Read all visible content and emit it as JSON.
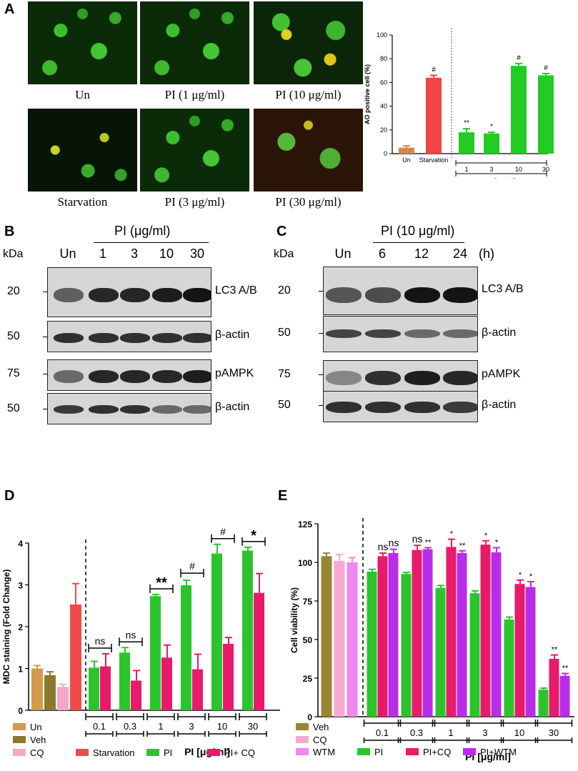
{
  "panel_labels": {
    "a": "A",
    "b": "B",
    "c": "C",
    "d": "D",
    "e": "E"
  },
  "micrographs": [
    {
      "caption": "Un",
      "tone": "green"
    },
    {
      "caption": "PI (1 μg/ml)",
      "tone": "green"
    },
    {
      "caption": "PI (10 μg/ml)",
      "tone": "yellow"
    },
    {
      "caption": "Starvation",
      "tone": "dark"
    },
    {
      "caption": "PI (3 μg/ml)",
      "tone": "green"
    },
    {
      "caption": "PI (30 μg/ml)",
      "tone": "red"
    }
  ],
  "western_b": {
    "header": "PI (μg/ml)",
    "kda": "kDa",
    "lanes": [
      "Un",
      "1",
      "3",
      "10",
      "30"
    ],
    "blots": [
      {
        "marker": "20",
        "label": "LC3 A/B",
        "intensity": [
          0.55,
          0.85,
          0.85,
          0.9,
          0.95
        ]
      },
      {
        "marker": "50",
        "label": "β-actin",
        "intensity": [
          0.8,
          0.8,
          0.8,
          0.8,
          0.8
        ]
      },
      {
        "marker": "75",
        "label": "pAMPK",
        "intensity": [
          0.5,
          0.85,
          0.85,
          0.85,
          0.9
        ]
      },
      {
        "marker": "50",
        "label": "β-actin",
        "intensity": [
          0.75,
          0.8,
          0.8,
          0.5,
          0.5
        ]
      }
    ]
  },
  "western_c": {
    "header": "PI (10 μg/ml)",
    "kda": "kDa",
    "unit": "(h)",
    "lanes": [
      "Un",
      "6",
      "12",
      "24"
    ],
    "blots": [
      {
        "marker": "20",
        "label": "LC3 A/B",
        "intensity": [
          0.6,
          0.65,
          0.95,
          0.95
        ]
      },
      {
        "marker": "50",
        "label": "β-actin",
        "intensity": [
          0.7,
          0.7,
          0.5,
          0.5
        ]
      },
      {
        "marker": "75",
        "label": "pAMPK",
        "intensity": [
          0.35,
          0.8,
          0.9,
          0.85
        ]
      },
      {
        "marker": "50",
        "label": "β-actin",
        "intensity": [
          0.8,
          0.8,
          0.8,
          0.75
        ]
      }
    ]
  },
  "chart_data": [
    {
      "id": "A",
      "type": "bar",
      "ylabel": "AO positive cell (%)",
      "ylim": [
        0,
        100
      ],
      "yticks": [
        0,
        20,
        40,
        60,
        80,
        100
      ],
      "categories": [
        "Un",
        "Starvation",
        "1",
        "3",
        "10",
        "30"
      ],
      "values": [
        5,
        64,
        18,
        17,
        74,
        66
      ],
      "errors": [
        1.5,
        2,
        3,
        1,
        2,
        1.5
      ],
      "sig": [
        "",
        "#",
        "**",
        "*",
        "#",
        "#"
      ],
      "colors": [
        "#d28a46",
        "#f24444",
        "#22cc22",
        "#22cc22",
        "#22cc22",
        "#22cc22"
      ],
      "group_label": "PI [μg/ml]"
    },
    {
      "id": "D",
      "type": "bar",
      "ylabel": "MDC staining (Fold Change)",
      "xlabel": "PI [μg/ml]",
      "ylim": [
        0,
        4
      ],
      "yticks": [
        0,
        1,
        2,
        3,
        4
      ],
      "controls": [
        {
          "name": "Un",
          "value": 1.0,
          "error": 0.07,
          "color": "#d29b4d"
        },
        {
          "name": "Veh",
          "value": 0.84,
          "error": 0.08,
          "color": "#8b7a2d"
        },
        {
          "name": "CQ",
          "value": 0.56,
          "error": 0.06,
          "color": "#f5a8c6"
        },
        {
          "name": "Starvation",
          "value": 2.53,
          "error": 0.5,
          "color": "#f24a4a"
        }
      ],
      "categories": [
        "0.1",
        "0.3",
        "1",
        "3",
        "10",
        "30"
      ],
      "series": [
        {
          "name": "PI",
          "color": "#2cc42c",
          "values": [
            1.02,
            1.38,
            2.73,
            2.99,
            3.75,
            3.82
          ],
          "errors": [
            0.15,
            0.12,
            0.04,
            0.12,
            0.22,
            0.08
          ]
        },
        {
          "name": "PI+ CQ",
          "color": "#e81a6a",
          "values": [
            1.05,
            0.71,
            1.26,
            0.98,
            1.59,
            2.81
          ],
          "errors": [
            0.3,
            0.24,
            0.3,
            0.36,
            0.15,
            0.46
          ]
        }
      ],
      "sig": [
        "ns",
        "ns",
        "**",
        "#",
        "#",
        "*"
      ],
      "legend": [
        "Un",
        "Veh",
        "CQ",
        "Starvation",
        "PI",
        "PI+ CQ"
      ]
    },
    {
      "id": "E",
      "type": "bar",
      "ylabel": "Cell viability (%)",
      "xlabel": "PI [μg/ml]",
      "ylim": [
        0,
        125
      ],
      "yticks": [
        0,
        25,
        50,
        75,
        100,
        125
      ],
      "controls": [
        {
          "name": "Veh",
          "value": 104,
          "error": 2,
          "color": "#9a8530"
        },
        {
          "name": "CQ",
          "value": 101,
          "error": 4,
          "color": "#f5a8d2"
        },
        {
          "name": "WTM",
          "value": 100,
          "error": 3,
          "color": "#ee88ee"
        }
      ],
      "categories": [
        "0.1",
        "0.3",
        "1",
        "3",
        "10",
        "30"
      ],
      "series": [
        {
          "name": "PI",
          "color": "#2cc42c",
          "values": [
            94,
            92.5,
            83.5,
            80,
            63,
            17.5
          ],
          "errors": [
            1.5,
            1,
            1.5,
            1.5,
            1.5,
            1
          ]
        },
        {
          "name": "PI+CQ",
          "color": "#e81a6a",
          "values": [
            104,
            108,
            110,
            111.5,
            86,
            37.5
          ],
          "errors": [
            2,
            3,
            5,
            2.5,
            2.5,
            2.5
          ]
        },
        {
          "name": "PI+WTM",
          "color": "#b82ee8",
          "values": [
            106,
            108.5,
            106,
            106.5,
            84,
            26.5
          ],
          "errors": [
            2.5,
            1,
            1.5,
            3,
            3.5,
            1.5
          ]
        }
      ],
      "sig": [
        [
          "",
          "ns",
          "ns"
        ],
        [
          "",
          "ns",
          "**"
        ],
        [
          "",
          "*",
          "**"
        ],
        [
          "",
          "*",
          "*"
        ],
        [
          "",
          "*",
          "*"
        ],
        [
          "",
          "**",
          "**"
        ]
      ],
      "legend": [
        "Veh",
        "CQ",
        "WTM",
        "PI",
        "PI+CQ",
        "PI+WTM"
      ]
    }
  ]
}
